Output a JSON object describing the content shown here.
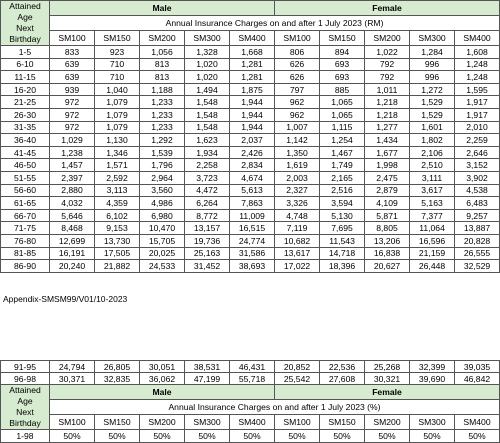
{
  "header": {
    "age_label": [
      "Attained",
      "Age",
      "Next",
      "Birthday"
    ],
    "male": "Male",
    "female": "Female",
    "sub_rm": "Annual Insurance Charges on and after 1 July 2023 (RM)",
    "sub_pct": "Annual Insurance Charges on and after 1 July 2023 (%)",
    "plans": [
      "SM100",
      "SM150",
      "SM200",
      "SM300",
      "SM400",
      "SM100",
      "SM150",
      "SM200",
      "SM300",
      "SM400"
    ]
  },
  "table1_rows": [
    [
      "1-5",
      "833",
      "923",
      "1,056",
      "1,328",
      "1,668",
      "806",
      "894",
      "1,022",
      "1,284",
      "1,608"
    ],
    [
      "6-10",
      "639",
      "710",
      "813",
      "1,020",
      "1,281",
      "626",
      "693",
      "792",
      "996",
      "1,248"
    ],
    [
      "11-15",
      "639",
      "710",
      "813",
      "1,020",
      "1,281",
      "626",
      "693",
      "792",
      "996",
      "1,248"
    ],
    [
      "16-20",
      "939",
      "1,040",
      "1,188",
      "1,494",
      "1,875",
      "797",
      "885",
      "1,011",
      "1,272",
      "1,595"
    ],
    [
      "21-25",
      "972",
      "1,079",
      "1,233",
      "1,548",
      "1,944",
      "962",
      "1,065",
      "1,218",
      "1,529",
      "1,917"
    ],
    [
      "26-30",
      "972",
      "1,079",
      "1,233",
      "1,548",
      "1,944",
      "962",
      "1,065",
      "1,218",
      "1,529",
      "1,917"
    ],
    [
      "31-35",
      "972",
      "1,079",
      "1,233",
      "1,548",
      "1,944",
      "1,007",
      "1,115",
      "1,277",
      "1,601",
      "2,010"
    ],
    [
      "36-40",
      "1,029",
      "1,130",
      "1,292",
      "1,623",
      "2,037",
      "1,142",
      "1,254",
      "1,434",
      "1,802",
      "2,259"
    ],
    [
      "41-45",
      "1,238",
      "1,346",
      "1,539",
      "1,934",
      "2,426",
      "1,350",
      "1,467",
      "1,677",
      "2,106",
      "2,646"
    ],
    [
      "46-50",
      "1,457",
      "1,571",
      "1,796",
      "2,258",
      "2,834",
      "1,619",
      "1,749",
      "1,998",
      "2,510",
      "3,152"
    ],
    [
      "51-55",
      "2,397",
      "2,592",
      "2,964",
      "3,723",
      "4,674",
      "2,003",
      "2,165",
      "2,475",
      "3,111",
      "3,902"
    ],
    [
      "56-60",
      "2,880",
      "3,113",
      "3,560",
      "4,472",
      "5,613",
      "2,327",
      "2,516",
      "2,879",
      "3,617",
      "4,538"
    ],
    [
      "61-65",
      "4,032",
      "4,359",
      "4,986",
      "6,264",
      "7,863",
      "3,326",
      "3,594",
      "4,109",
      "5,163",
      "6,483"
    ],
    [
      "66-70",
      "5,646",
      "6,102",
      "6,980",
      "8,772",
      "11,009",
      "4,748",
      "5,130",
      "5,871",
      "7,377",
      "9,257"
    ],
    [
      "71-75",
      "8,468",
      "9,153",
      "10,470",
      "13,157",
      "16,515",
      "7,119",
      "7,695",
      "8,805",
      "11,064",
      "13,887"
    ],
    [
      "76-80",
      "12,699",
      "13,730",
      "15,705",
      "19,736",
      "24,774",
      "10,682",
      "11,543",
      "13,206",
      "16,596",
      "20,828"
    ],
    [
      "81-85",
      "16,191",
      "17,505",
      "20,025",
      "25,163",
      "31,586",
      "13,617",
      "14,718",
      "16,838",
      "21,159",
      "26,555"
    ],
    [
      "86-90",
      "20,240",
      "21,882",
      "24,533",
      "31,452",
      "38,693",
      "17,022",
      "18,396",
      "20,627",
      "26,448",
      "32,529"
    ]
  ],
  "appendix": "Appendix-SMSM99/V01/10-2023",
  "table2_rows": [
    [
      "91-95",
      "24,794",
      "26,805",
      "30,051",
      "38,531",
      "46,431",
      "20,852",
      "22,536",
      "25,268",
      "32,399",
      "39,035"
    ],
    [
      "96-98",
      "30,371",
      "32,835",
      "36,062",
      "47,199",
      "55,718",
      "25,542",
      "27,608",
      "30,321",
      "39,690",
      "46,842"
    ]
  ],
  "table2_pct_rows": [
    [
      "1-98",
      "50%",
      "50%",
      "50%",
      "50%",
      "50%",
      "50%",
      "50%",
      "50%",
      "50%",
      "50%"
    ]
  ],
  "colors": {
    "header_green": "#d6ebcf",
    "border": "#555555"
  }
}
